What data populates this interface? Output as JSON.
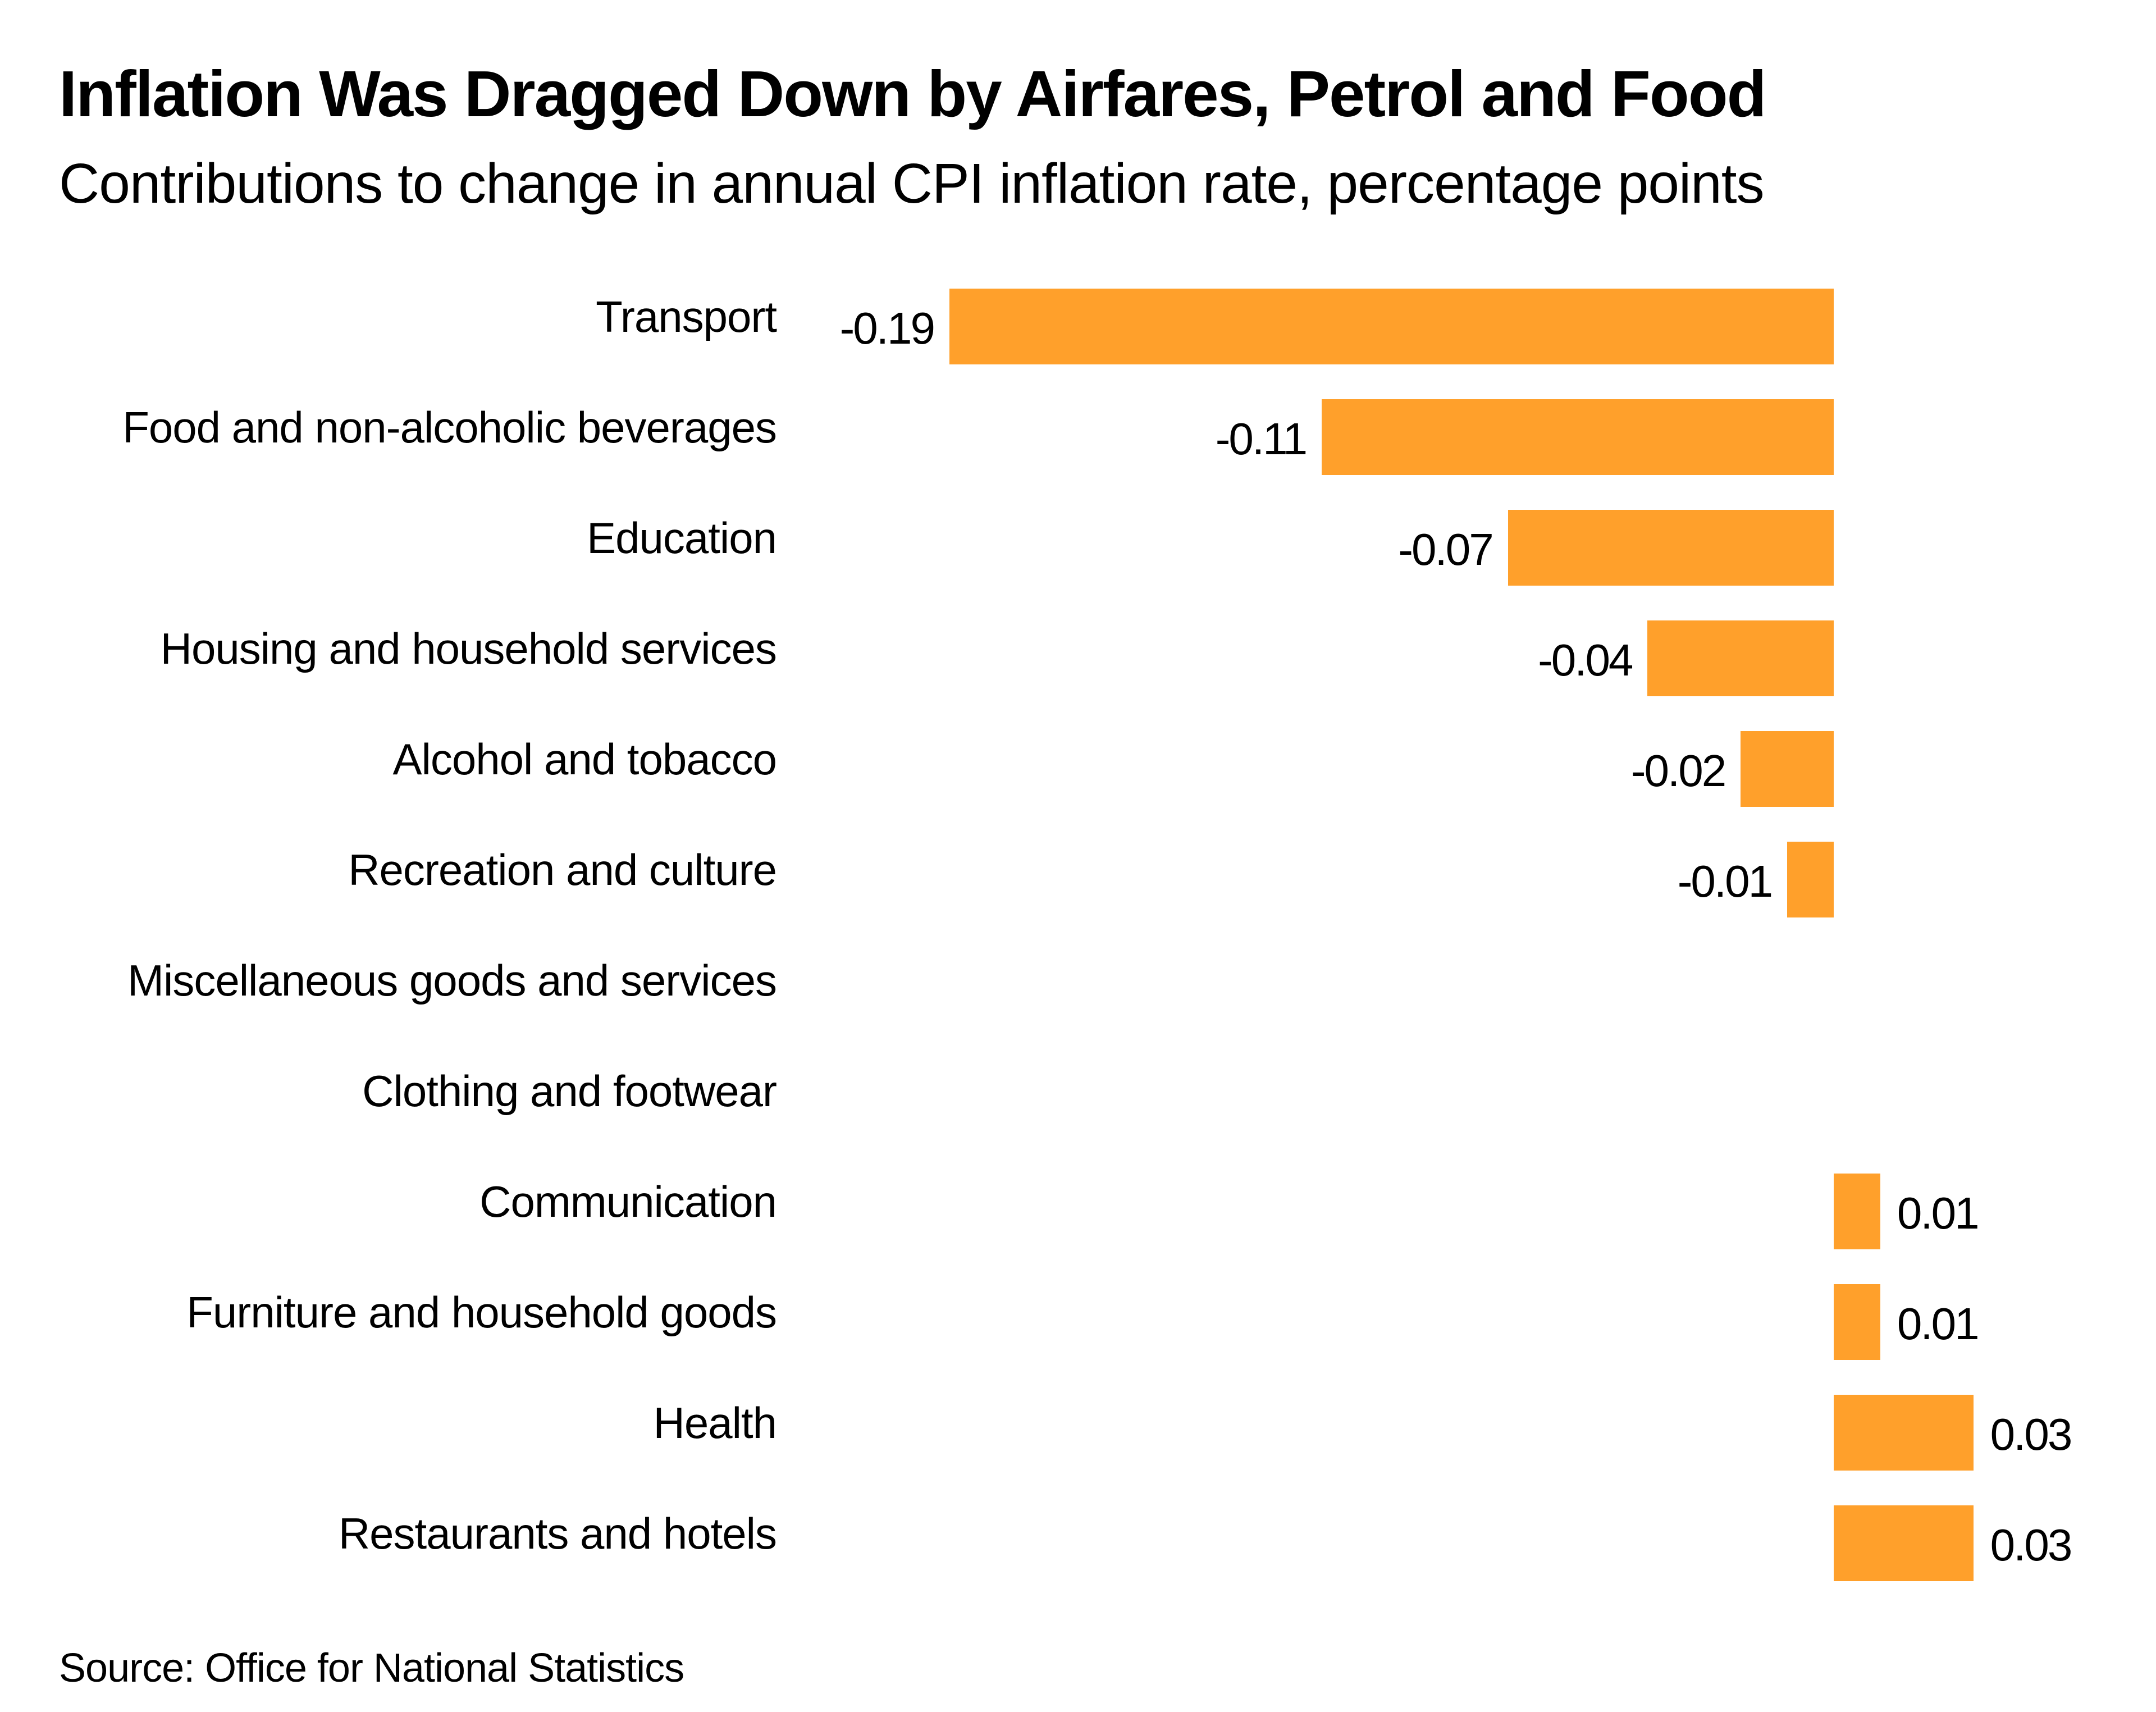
{
  "title": "Inflation Was Dragged Down by Airfares, Petrol and Food",
  "subtitle": "Contributions to change in annual CPI inflation rate, percentage points",
  "source": "Source: Office for National Statistics",
  "colors": {
    "bar": "#ffa02b"
  },
  "chart_data": {
    "type": "bar",
    "orientation": "horizontal",
    "title": "Inflation Was Dragged Down by Airfares, Petrol and Food",
    "subtitle": "Contributions to change in annual CPI inflation rate, percentage points",
    "categories": [
      "Transport",
      "Food and non-alcoholic beverages",
      "Education",
      "Housing and household services",
      "Alcohol and tobacco",
      "Recreation and culture",
      "Miscellaneous goods and services",
      "Clothing and footwear",
      "Communication",
      "Furniture and household goods",
      "Health",
      "Restaurants and hotels"
    ],
    "values": [
      -0.19,
      -0.11,
      -0.07,
      -0.04,
      -0.02,
      -0.01,
      0,
      0,
      0.01,
      0.01,
      0.03,
      0.03
    ],
    "labels": [
      "-0.19",
      "-0.11",
      "-0.07",
      "-0.04",
      "-0.02",
      "-0.01",
      "",
      "",
      "0.01",
      "0.01",
      "0.03",
      "0.03"
    ],
    "xlim": [
      -0.19,
      0.03
    ],
    "grid": false,
    "legend": "none"
  }
}
